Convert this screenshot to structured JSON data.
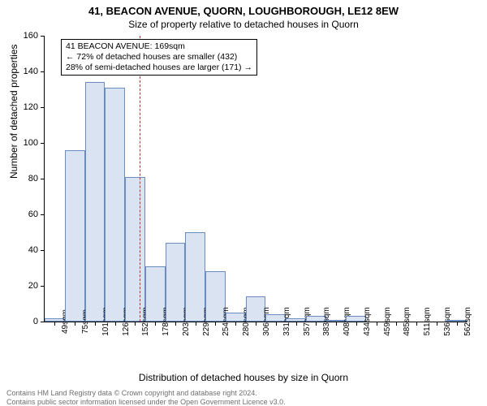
{
  "title": "41, BEACON AVENUE, QUORN, LOUGHBOROUGH, LE12 8EW",
  "subtitle": "Size of property relative to detached houses in Quorn",
  "y_axis_title": "Number of detached properties",
  "x_axis_title": "Distribution of detached houses by size in Quorn",
  "chart": {
    "type": "histogram",
    "bar_fill": "#d9e3f1",
    "bar_stroke": "#6a8cbf",
    "marker_color": "#c03030",
    "background": "#ffffff",
    "x_start": 49,
    "x_step": 25.5,
    "x_labels": [
      "49sqm",
      "75sqm",
      "101sqm",
      "126sqm",
      "152sqm",
      "178sqm",
      "203sqm",
      "229sqm",
      "254sqm",
      "280sqm",
      "306sqm",
      "331sqm",
      "357sqm",
      "383sqm",
      "408sqm",
      "434sqm",
      "459sqm",
      "485sqm",
      "511sqm",
      "536sqm",
      "562sqm"
    ],
    "values": [
      2,
      96,
      134,
      131,
      81,
      31,
      44,
      50,
      28,
      5,
      14,
      4,
      2,
      3,
      1,
      3,
      0,
      0,
      0,
      0,
      1
    ],
    "y_max": 160,
    "y_ticks": [
      0,
      20,
      40,
      60,
      80,
      100,
      120,
      140,
      160
    ],
    "marker_value_sqm": 169,
    "annotation": {
      "line1": "41 BEACON AVENUE: 169sqm",
      "line2": "← 72% of detached houses are smaller (432)",
      "line3": "28% of semi-detached houses are larger (171) →"
    }
  },
  "footer": {
    "line1": "Contains HM Land Registry data © Crown copyright and database right 2024.",
    "line2": "Contains public sector information licensed under the Open Government Licence v3.0."
  }
}
